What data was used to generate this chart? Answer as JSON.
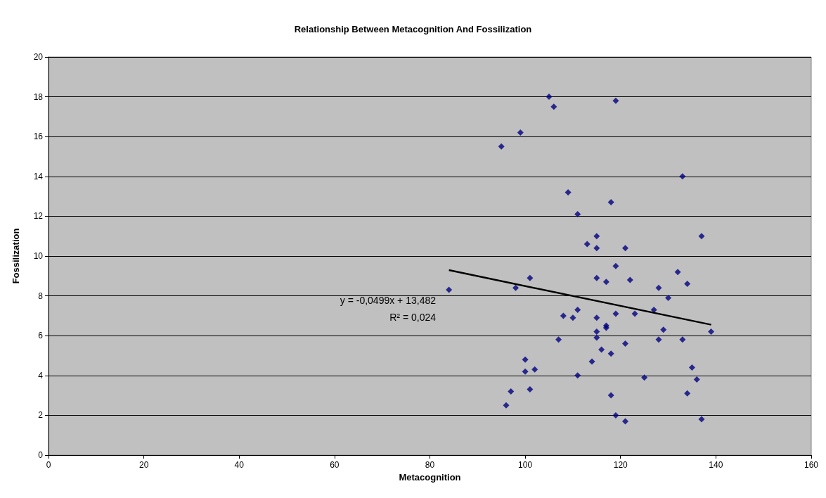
{
  "chart_data": {
    "type": "scatter",
    "title": "Relationship Between Metacognition And Fossilization",
    "xlabel": "Metacognition",
    "ylabel": "Fossilization",
    "xlim": [
      0,
      160
    ],
    "xticks": [
      0,
      20,
      40,
      60,
      80,
      100,
      120,
      140,
      160
    ],
    "ylim": [
      0,
      20
    ],
    "yticks": [
      0,
      2,
      4,
      6,
      8,
      10,
      12,
      14,
      16,
      18,
      20
    ],
    "grid": "y",
    "marker": "diamond",
    "annotations": [
      "y = -0,0499x + 13,482",
      "R² = 0,024"
    ],
    "series": [
      {
        "color": "#000080",
        "x": [
          105,
          106,
          119,
          99,
          95,
          133,
          109,
          118,
          111,
          115,
          113,
          115,
          121,
          137,
          119,
          132,
          84,
          98,
          101,
          115,
          117,
          122,
          134,
          128,
          130,
          127,
          108,
          110,
          111,
          119,
          115,
          123,
          117,
          117,
          115,
          115,
          129,
          128,
          133,
          139,
          107,
          121,
          116,
          118,
          114,
          100,
          100,
          102,
          111,
          125,
          135,
          136,
          97,
          101,
          96,
          118,
          134,
          119,
          121,
          137
        ],
        "values": [
          18.0,
          17.5,
          17.8,
          16.2,
          15.5,
          14.0,
          13.2,
          12.7,
          12.1,
          11.0,
          10.6,
          10.4,
          10.4,
          11.0,
          9.5,
          9.2,
          8.3,
          8.4,
          8.9,
          8.9,
          8.7,
          8.8,
          8.6,
          8.4,
          7.9,
          7.3,
          7.0,
          6.9,
          7.3,
          7.1,
          6.9,
          7.1,
          6.5,
          6.4,
          6.2,
          5.9,
          6.3,
          5.8,
          5.8,
          6.2,
          5.8,
          5.6,
          5.3,
          5.1,
          4.7,
          4.8,
          4.2,
          4.3,
          4.0,
          3.9,
          4.4,
          3.8,
          3.2,
          3.3,
          2.5,
          3.0,
          3.1,
          2.0,
          1.7,
          1.8
        ]
      },
      {
        "type": "line",
        "color": "#000000",
        "marker": "none",
        "x": [
          84,
          139
        ],
        "values": [
          9.29,
          6.55
        ]
      }
    ]
  }
}
